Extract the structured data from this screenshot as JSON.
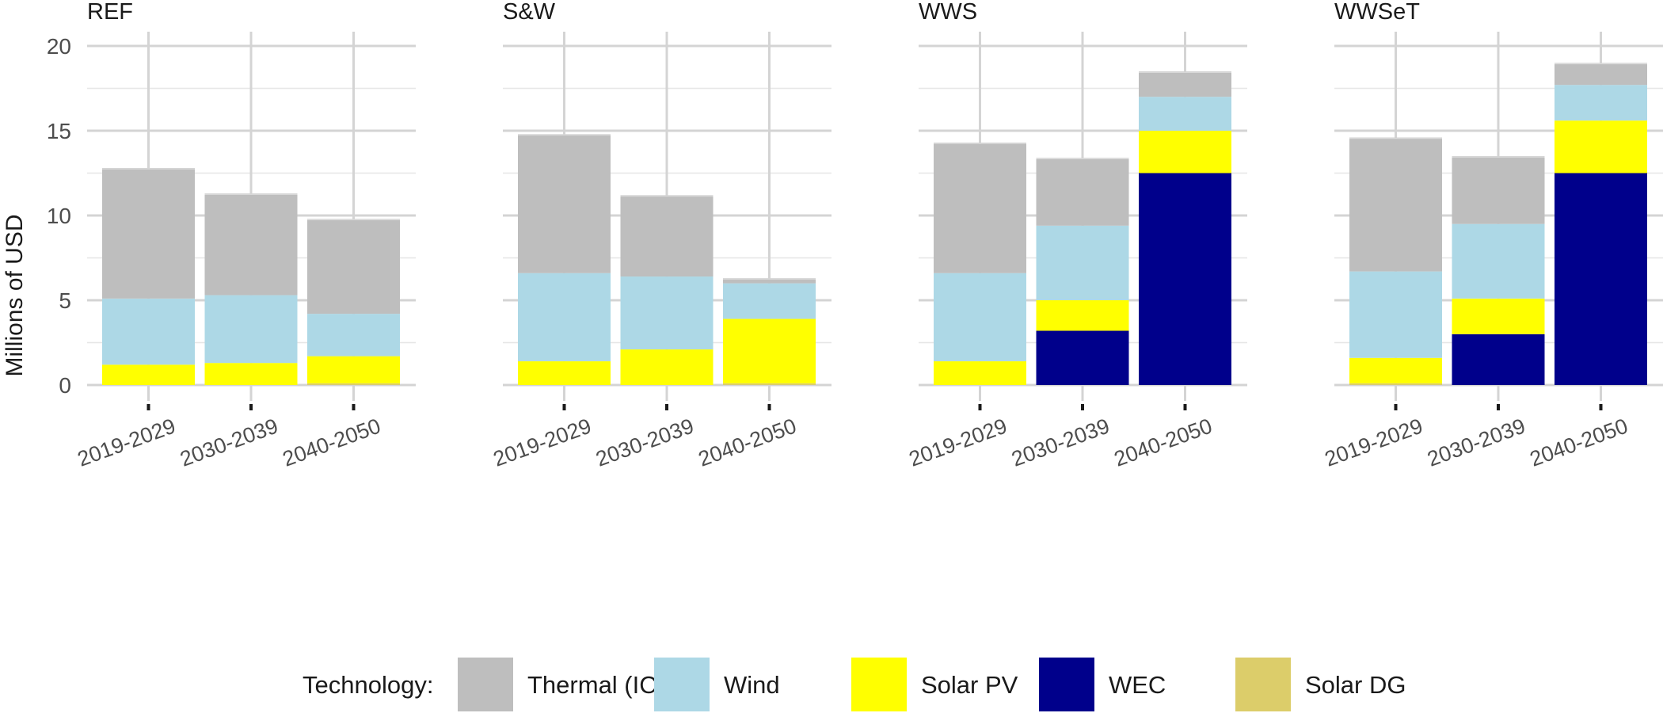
{
  "chart_data": {
    "type": "bar",
    "stacked": true,
    "facets": [
      "REF",
      "S&W",
      "WWS",
      "WWSeT"
    ],
    "categories": [
      "2019-2029",
      "2030-2039",
      "2040-2050"
    ],
    "ylabel": "Millions of USD",
    "xlabel": "",
    "ylim": [
      0,
      20
    ],
    "yticks": [
      0,
      5,
      10,
      15,
      20
    ],
    "grid": true,
    "legend_position": "bottom",
    "legend_title": "Technology:",
    "technologies": [
      {
        "name": "Thermal (ICE)",
        "color": "#bebebe"
      },
      {
        "name": "Wind",
        "color": "#add8e6"
      },
      {
        "name": "Solar PV",
        "color": "#ffff00"
      },
      {
        "name": "WEC",
        "color": "#00008b"
      },
      {
        "name": "Solar DG",
        "color": "#dccd6a"
      }
    ],
    "panels": [
      {
        "facet": "REF",
        "bars": [
          {
            "category": "2019-2029",
            "Solar DG": 0.0,
            "WEC": 0.0,
            "Solar PV": 1.2,
            "Wind": 3.9,
            "Thermal (ICE)": 7.7
          },
          {
            "category": "2030-2039",
            "Solar DG": 0.0,
            "WEC": 0.0,
            "Solar PV": 1.3,
            "Wind": 4.0,
            "Thermal (ICE)": 6.0
          },
          {
            "category": "2040-2050",
            "Solar DG": 0.1,
            "WEC": 0.0,
            "Solar PV": 1.6,
            "Wind": 2.5,
            "Thermal (ICE)": 5.6
          }
        ]
      },
      {
        "facet": "S&W",
        "bars": [
          {
            "category": "2019-2029",
            "Solar DG": 0.0,
            "WEC": 0.0,
            "Solar PV": 1.4,
            "Wind": 5.2,
            "Thermal (ICE)": 8.2
          },
          {
            "category": "2030-2039",
            "Solar DG": 0.0,
            "WEC": 0.0,
            "Solar PV": 2.1,
            "Wind": 4.3,
            "Thermal (ICE)": 4.8
          },
          {
            "category": "2040-2050",
            "Solar DG": 0.1,
            "WEC": 0.0,
            "Solar PV": 3.8,
            "Wind": 2.1,
            "Thermal (ICE)": 0.3
          }
        ]
      },
      {
        "facet": "WWS",
        "bars": [
          {
            "category": "2019-2029",
            "Solar DG": 0.0,
            "WEC": 0.0,
            "Solar PV": 1.4,
            "Wind": 5.2,
            "Thermal (ICE)": 7.7
          },
          {
            "category": "2030-2039",
            "Solar DG": 0.0,
            "WEC": 3.2,
            "Solar PV": 1.8,
            "Wind": 4.4,
            "Thermal (ICE)": 4.0
          },
          {
            "category": "2040-2050",
            "Solar DG": 0.0,
            "WEC": 12.5,
            "Solar PV": 2.5,
            "Wind": 2.0,
            "Thermal (ICE)": 1.5
          }
        ]
      },
      {
        "facet": "WWSeT",
        "bars": [
          {
            "category": "2019-2029",
            "Solar DG": 0.1,
            "WEC": 0.0,
            "Solar PV": 1.5,
            "Wind": 5.1,
            "Thermal (ICE)": 7.9
          },
          {
            "category": "2030-2039",
            "Solar DG": 0.0,
            "WEC": 3.0,
            "Solar PV": 2.1,
            "Wind": 4.4,
            "Thermal (ICE)": 4.0
          },
          {
            "category": "2040-2050",
            "Solar DG": 0.0,
            "WEC": 12.5,
            "Solar PV": 3.1,
            "Wind": 2.1,
            "Thermal (ICE)": 1.3
          }
        ]
      }
    ]
  }
}
